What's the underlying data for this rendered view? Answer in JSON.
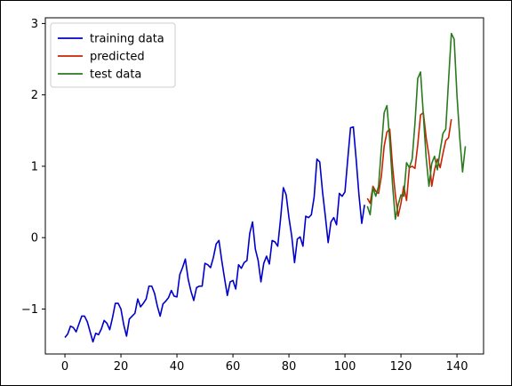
{
  "chart_data": {
    "type": "line",
    "title": "",
    "xlabel": "",
    "ylabel": "",
    "xlim": [
      -7,
      149.5
    ],
    "ylim": [
      -1.63,
      3.08
    ],
    "xticks": [
      0,
      20,
      40,
      60,
      80,
      100,
      120,
      140
    ],
    "yticks": [
      -1,
      0,
      1,
      2,
      3
    ],
    "grid": false,
    "legend_position": "top-left",
    "series": [
      {
        "name": "training data",
        "color": "#0000cc",
        "x_start": 0,
        "values": [
          -1.4,
          -1.35,
          -1.24,
          -1.26,
          -1.32,
          -1.21,
          -1.1,
          -1.1,
          -1.18,
          -1.32,
          -1.46,
          -1.34,
          -1.36,
          -1.28,
          -1.16,
          -1.2,
          -1.29,
          -1.12,
          -0.92,
          -0.92,
          -1.0,
          -1.22,
          -1.38,
          -1.14,
          -1.1,
          -1.06,
          -0.86,
          -0.97,
          -0.92,
          -0.86,
          -0.68,
          -0.68,
          -0.78,
          -0.96,
          -1.1,
          -0.93,
          -0.89,
          -0.84,
          -0.74,
          -0.82,
          -0.83,
          -0.52,
          -0.42,
          -0.3,
          -0.58,
          -0.75,
          -0.88,
          -0.7,
          -0.68,
          -0.68,
          -0.36,
          -0.38,
          -0.42,
          -0.28,
          -0.09,
          -0.04,
          -0.32,
          -0.57,
          -0.81,
          -0.62,
          -0.6,
          -0.72,
          -0.38,
          -0.43,
          -0.35,
          -0.32,
          0.06,
          0.22,
          -0.16,
          -0.32,
          -0.62,
          -0.36,
          -0.26,
          -0.37,
          -0.04,
          -0.06,
          -0.12,
          0.26,
          0.7,
          0.6,
          0.28,
          0.02,
          -0.35,
          -0.02,
          0.01,
          -0.12,
          0.3,
          0.28,
          0.32,
          0.57,
          1.1,
          1.06,
          0.64,
          0.3,
          -0.07,
          0.22,
          0.28,
          0.18,
          0.62,
          0.58,
          0.64,
          1.1,
          1.54,
          1.55,
          1.1,
          0.6,
          0.2,
          0.46
        ]
      },
      {
        "name": "predicted",
        "color": "#cc2200",
        "x_start": 108,
        "values": [
          0.55,
          0.48,
          0.72,
          0.65,
          0.62,
          0.86,
          1.28,
          1.48,
          1.52,
          1.0,
          0.6,
          0.3,
          0.48,
          0.72,
          0.52,
          0.98,
          1.0,
          0.97,
          1.3,
          1.72,
          1.75,
          1.4,
          1.15,
          0.72,
          0.95,
          1.1,
          0.98,
          1.18,
          1.36,
          1.4,
          1.66
        ]
      },
      {
        "name": "test data",
        "color": "#2a7a1e",
        "x_start": 108,
        "values": [
          0.44,
          0.32,
          0.7,
          0.58,
          0.72,
          1.25,
          1.75,
          1.85,
          1.36,
          0.74,
          0.26,
          0.46,
          0.6,
          0.58,
          1.05,
          0.98,
          1.1,
          1.6,
          2.23,
          2.32,
          1.72,
          1.12,
          0.72,
          1.04,
          1.14,
          0.95,
          1.22,
          1.46,
          1.52,
          2.2,
          2.86,
          2.78,
          2.0,
          1.4,
          0.92,
          1.28
        ]
      }
    ]
  }
}
